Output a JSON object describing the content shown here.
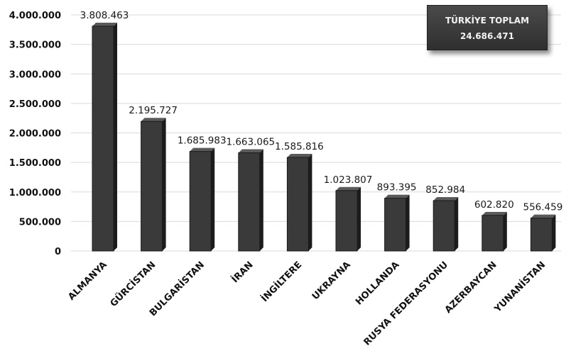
{
  "chart_data": {
    "type": "bar",
    "categories": [
      "ALMANYA",
      "GÜRCİSTAN",
      "BULGARİSTAN",
      "İRAN",
      "İNGİLTERE",
      "UKRAYNA",
      "HOLLANDA",
      "RUSYA FEDERASYONU",
      "AZERBAYCAN",
      "YUNANİSTAN"
    ],
    "values": [
      3808463,
      2195727,
      1685983,
      1663065,
      1585816,
      1023807,
      893395,
      852984,
      602820,
      556459
    ],
    "data_labels": [
      "3.808.463",
      "2.195.727",
      "1.685.983",
      "1.663.065",
      "1.585.816",
      "1.023.807",
      "893.395",
      "852.984",
      "602.820",
      "556.459"
    ],
    "y_ticks": [
      0,
      500000,
      1000000,
      1500000,
      2000000,
      2500000,
      3000000,
      3500000,
      4000000
    ],
    "y_tick_labels": [
      "0",
      "500.000",
      "1.000.000",
      "1.500.000",
      "2.000.000",
      "2.500.000",
      "3.000.000",
      "3.500.000",
      "4.000.000"
    ],
    "ylim": [
      0,
      4000000
    ],
    "grid": true,
    "bar_color": "#3a3a3a",
    "title": "",
    "xlabel": "",
    "ylabel": ""
  },
  "total_box": {
    "label": "TÜRKİYE TOPLAM",
    "value": "24.686.471"
  }
}
